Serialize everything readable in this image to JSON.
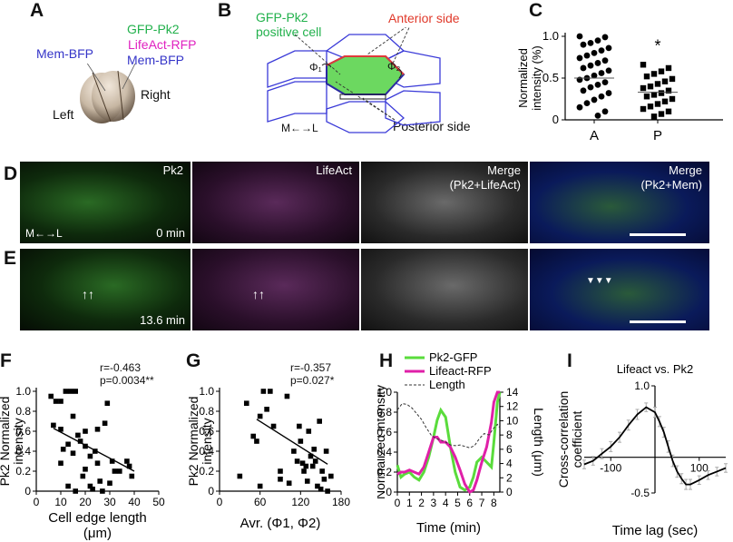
{
  "panels": {
    "A": {
      "letter": "A",
      "gfp": "GFP-Pk2",
      "lifeact": "LifeAct-RFP",
      "mem_left": "Mem-BFP",
      "mem_right": "Mem-BFP",
      "left": "Left",
      "right": "Right",
      "colors": {
        "gfp": "#22b14c",
        "lifeact": "#e020c0",
        "mem": "#3030c8"
      }
    },
    "B": {
      "letter": "B",
      "gfp_line1": "GFP-Pk2",
      "gfp_line2": "positive cell",
      "anterior": "Anterior side",
      "posterior": "Posterior side",
      "phi1": "Φ₁",
      "phi2": "Φ₂",
      "axis": "M←→L"
    },
    "C": {
      "letter": "C"
    },
    "D": {
      "letter": "D",
      "captions": [
        "Pk2",
        "LifeAct",
        "Merge",
        "(Pk2+LifeAct)",
        "Merge",
        "(Pk2+Mem)"
      ],
      "axis": "M←→L",
      "time": "0 min"
    },
    "E": {
      "letter": "E",
      "time": "13.6 min"
    },
    "F": {
      "letter": "F",
      "stats_r": "r=-0.463",
      "stats_p": "p=0.0034**"
    },
    "G": {
      "letter": "G",
      "stats_r": "r=-0.357",
      "stats_p": "p=0.027*"
    },
    "H": {
      "letter": "H"
    },
    "I": {
      "letter": "I"
    }
  },
  "chart_data": [
    {
      "id": "C",
      "type": "scatter",
      "title": "",
      "xlabel": "",
      "ylabel": "Normalized intensity (%)",
      "categories": [
        "A",
        "P"
      ],
      "ylim": [
        0,
        1.0
      ],
      "yticks": [
        "0",
        "0.5",
        "1.0"
      ],
      "significance": "*",
      "series": [
        {
          "category": "A",
          "marker": "circle",
          "values": [
            1.0,
            0.99,
            0.95,
            0.92,
            0.9,
            0.86,
            0.83,
            0.8,
            0.77,
            0.74,
            0.71,
            0.68,
            0.65,
            0.62,
            0.59,
            0.56,
            0.53,
            0.5,
            0.48,
            0.45,
            0.42,
            0.39,
            0.35,
            0.32,
            0.28,
            0.24,
            0.2,
            0.15,
            0.1,
            0.05
          ]
        },
        {
          "category": "P",
          "marker": "square",
          "values": [
            0.66,
            0.62,
            0.58,
            0.55,
            0.52,
            0.49,
            0.46,
            0.43,
            0.4,
            0.38,
            0.35,
            0.32,
            0.3,
            0.28,
            0.25,
            0.22,
            0.19,
            0.16,
            0.13,
            0.1,
            0.07,
            0.04
          ]
        }
      ],
      "means": [
        0.5,
        0.33
      ]
    },
    {
      "id": "F",
      "type": "scatter",
      "title": "",
      "xlabel": "Cell edge length (μm)",
      "ylabel": "Pk2 Normalized intensity",
      "xlim": [
        0,
        50
      ],
      "ylim": [
        0,
        1.0
      ],
      "xticks": [
        "0",
        "10",
        "20",
        "30",
        "40",
        "50"
      ],
      "yticks": [
        "0",
        "0.2",
        "0.4",
        "0.6",
        "0.8",
        "1.0"
      ],
      "points": [
        [
          6,
          0.95
        ],
        [
          8,
          0.9
        ],
        [
          10,
          0.9
        ],
        [
          12,
          1.0
        ],
        [
          14,
          1.0
        ],
        [
          15,
          0.75
        ],
        [
          16,
          1.0
        ],
        [
          10,
          0.62
        ],
        [
          11,
          0.42
        ],
        [
          13,
          0.47
        ],
        [
          13,
          0.05
        ],
        [
          15,
          0.38
        ],
        [
          17,
          0.56
        ],
        [
          18,
          0.5
        ],
        [
          19,
          0.15
        ],
        [
          20,
          0.45
        ],
        [
          20,
          0.22
        ],
        [
          22,
          0.35
        ],
        [
          22,
          0.05
        ],
        [
          23,
          0.02
        ],
        [
          24,
          0.4
        ],
        [
          25,
          0.62
        ],
        [
          25,
          0.28
        ],
        [
          26,
          0.1
        ],
        [
          27,
          0.0
        ],
        [
          28,
          0.68
        ],
        [
          29,
          0.88
        ],
        [
          30,
          0.08
        ],
        [
          31,
          0.3
        ],
        [
          32,
          0.2
        ],
        [
          34,
          0.2
        ],
        [
          37,
          0.3
        ],
        [
          38,
          0.25
        ],
        [
          39,
          0.15
        ],
        [
          10,
          0.28
        ],
        [
          7,
          0.66
        ],
        [
          16,
          0.0
        ],
        [
          20,
          0.6
        ]
      ],
      "regression": [
        [
          7,
          0.63
        ],
        [
          40,
          0.2
        ]
      ]
    },
    {
      "id": "G",
      "type": "scatter",
      "title": "",
      "xlabel": "Avr. (Φ1, Φ2)",
      "ylabel": "Pk2 Normalized intensity",
      "xlim": [
        0,
        180
      ],
      "ylim": [
        0,
        1.0
      ],
      "xticks": [
        "0",
        "60",
        "120",
        "180"
      ],
      "yticks": [
        "0",
        "0.2",
        "0.4",
        "0.6",
        "0.8",
        "1.0"
      ],
      "points": [
        [
          30,
          0.15
        ],
        [
          40,
          0.88
        ],
        [
          50,
          0.55
        ],
        [
          55,
          0.5
        ],
        [
          60,
          0.75
        ],
        [
          60,
          0.05
        ],
        [
          65,
          1.0
        ],
        [
          70,
          0.82
        ],
        [
          75,
          1.0
        ],
        [
          80,
          0.65
        ],
        [
          90,
          0.12
        ],
        [
          90,
          0.2
        ],
        [
          100,
          0.95
        ],
        [
          110,
          0.4
        ],
        [
          115,
          0.3
        ],
        [
          118,
          0.65
        ],
        [
          120,
          0.5
        ],
        [
          123,
          0.28
        ],
        [
          125,
          0.2
        ],
        [
          128,
          0.25
        ],
        [
          130,
          0.1
        ],
        [
          132,
          0.6
        ],
        [
          135,
          0.35
        ],
        [
          138,
          0.25
        ],
        [
          140,
          0.42
        ],
        [
          142,
          0.3
        ],
        [
          145,
          0.05
        ],
        [
          148,
          0.7
        ],
        [
          150,
          0.02
        ],
        [
          152,
          0.2
        ],
        [
          155,
          0.12
        ],
        [
          158,
          0.4
        ],
        [
          160,
          0.0
        ],
        [
          165,
          0.15
        ],
        [
          103,
          0.08
        ]
      ],
      "regression": [
        [
          55,
          0.72
        ],
        [
          160,
          0.27
        ]
      ]
    },
    {
      "id": "H",
      "type": "line",
      "title": "",
      "xlabel": "Time (min)",
      "ylabel": "Normalized intensity",
      "ylabel_right": "Length (μm)",
      "xlim": [
        0,
        8.5
      ],
      "ylim": [
        0,
        1.0
      ],
      "ylim_right": [
        0,
        14
      ],
      "xticks": [
        "0",
        "1",
        "2",
        "3",
        "4",
        "5",
        "6",
        "7",
        "8"
      ],
      "yticks": [
        "0",
        "0.2",
        "0.4",
        "0.6",
        "0.8",
        "1.0"
      ],
      "yticks_right": [
        "0",
        "2",
        "4",
        "6",
        "8",
        "10",
        "12",
        "14"
      ],
      "series": [
        {
          "name": "Pk2-GFP",
          "color": "#5adc3c",
          "axis": "left",
          "x": [
            0,
            0.3,
            0.6,
            1,
            1.4,
            1.8,
            2.2,
            2.6,
            3,
            3.3,
            3.6,
            4,
            4.4,
            4.8,
            5.2,
            5.6,
            6,
            6.3,
            6.6,
            7,
            7.4,
            7.8,
            8,
            8.3,
            8.5
          ],
          "y": [
            0.27,
            0.15,
            0.18,
            0.2,
            0.15,
            0.12,
            0.2,
            0.35,
            0.55,
            0.72,
            0.82,
            0.75,
            0.45,
            0.2,
            0.05,
            0.02,
            0.05,
            0.15,
            0.3,
            0.35,
            0.3,
            0.25,
            0.5,
            0.9,
            1.0
          ]
        },
        {
          "name": "Lifeact-RFP",
          "color": "#e020a8",
          "axis": "left",
          "x": [
            0,
            0.3,
            0.6,
            1,
            1.4,
            1.8,
            2.2,
            2.6,
            3,
            3.3,
            3.6,
            4,
            4.4,
            4.8,
            5.2,
            5.6,
            6,
            6.3,
            6.6,
            7,
            7.4,
            7.8,
            8,
            8.3,
            8.5
          ],
          "y": [
            0.18,
            0.2,
            0.2,
            0.22,
            0.2,
            0.18,
            0.25,
            0.4,
            0.55,
            0.55,
            0.5,
            0.5,
            0.45,
            0.35,
            0.22,
            0.08,
            0.0,
            0.02,
            0.12,
            0.3,
            0.45,
            0.7,
            0.9,
            1.0,
            1.0
          ]
        },
        {
          "name": "Length",
          "color": "#333333",
          "dash": true,
          "axis": "right",
          "x": [
            0,
            0.4,
            0.8,
            1.2,
            1.6,
            2,
            2.4,
            2.8,
            3.2,
            3.6,
            4,
            4.4,
            4.8,
            5.2,
            5.6,
            6,
            6.4,
            6.8,
            7.2,
            7.6,
            8,
            8.3,
            8.5
          ],
          "y": [
            11.5,
            12.4,
            12.3,
            11.8,
            11.0,
            10.2,
            9.0,
            8.0,
            7.5,
            7.3,
            7.0,
            6.6,
            6.5,
            6.6,
            6.4,
            6.2,
            6.5,
            7.5,
            8.2,
            8.0,
            9.0,
            9.5,
            9.0
          ]
        }
      ]
    },
    {
      "id": "I",
      "type": "line",
      "title": "Lifeact vs. Pk2",
      "xlabel": "Time lag (sec)",
      "ylabel": "Cross-correlation coefficient",
      "xlim": [
        -160,
        160
      ],
      "ylim": [
        -0.5,
        1.0
      ],
      "xticks": [
        "-100",
        "100"
      ],
      "yticks": [
        "-0.5",
        "1.0"
      ],
      "series": [
        {
          "name": "",
          "color": "#000000",
          "x": [
            -160,
            -140,
            -120,
            -100,
            -80,
            -60,
            -40,
            -20,
            0,
            10,
            20,
            30,
            40,
            50,
            60,
            70,
            80,
            100,
            120,
            140,
            160
          ],
          "y": [
            -0.1,
            -0.05,
            0.05,
            0.15,
            0.28,
            0.45,
            0.6,
            0.7,
            0.63,
            0.5,
            0.35,
            0.15,
            -0.05,
            -0.2,
            -0.3,
            -0.38,
            -0.38,
            -0.32,
            -0.25,
            -0.2,
            -0.15
          ],
          "error": [
            0.06,
            0.06,
            0.07,
            0.07,
            0.07,
            0.07,
            0.07,
            0.06,
            0.07,
            0.07,
            0.07,
            0.08,
            0.08,
            0.08,
            0.07,
            0.07,
            0.07,
            0.06,
            0.06,
            0.06,
            0.06
          ]
        }
      ]
    }
  ]
}
